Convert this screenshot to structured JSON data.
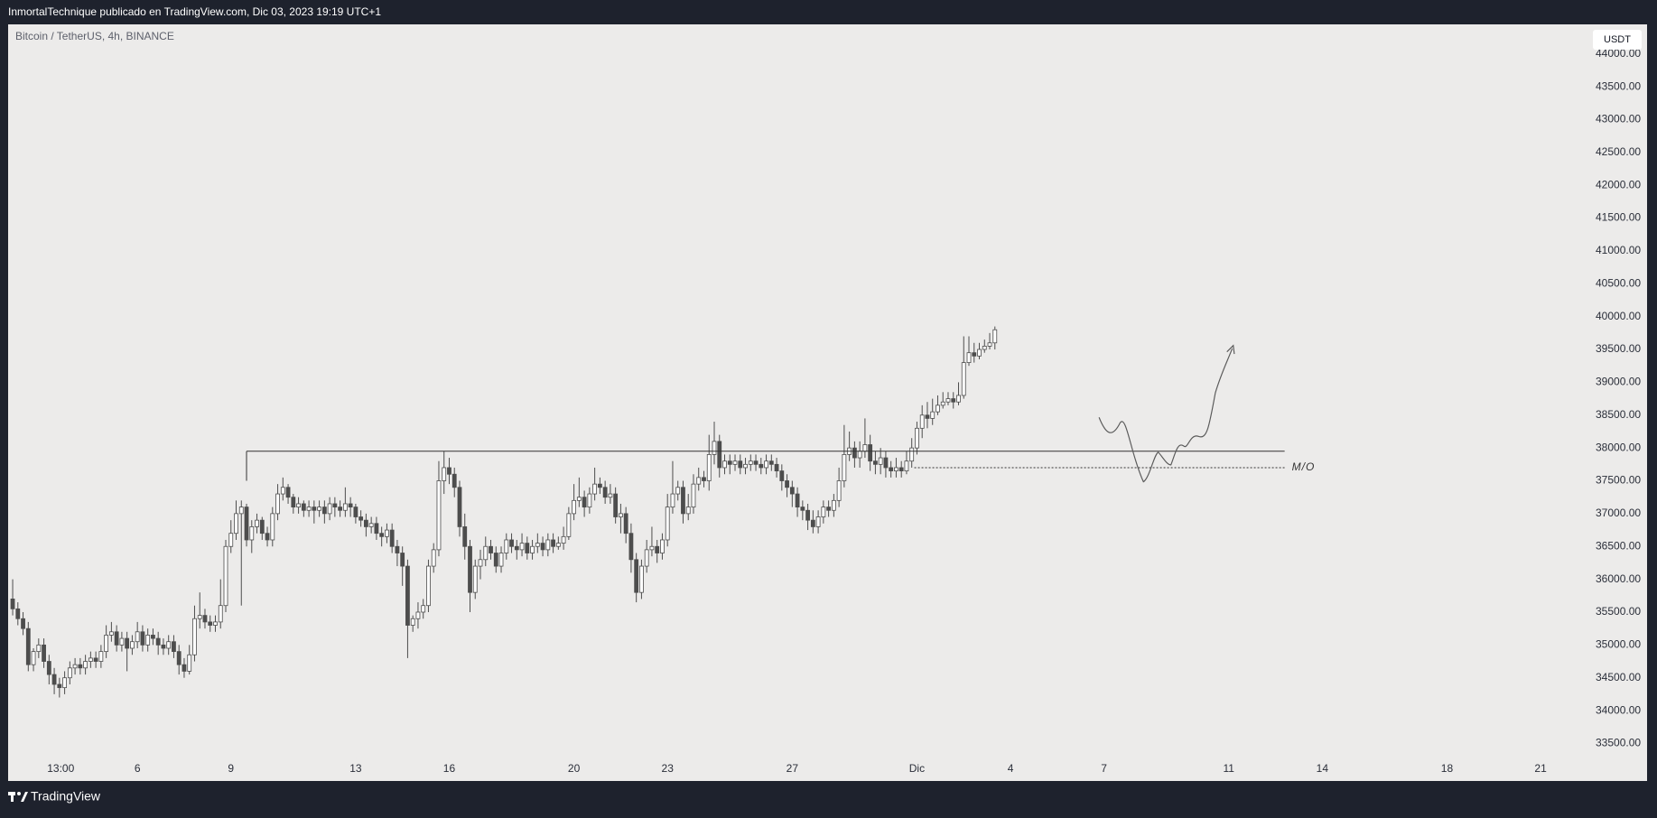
{
  "chart_data": {
    "type": "candlestick",
    "publisher_line": "InmortalTechnique publicado en TradingView.com, Dic 03, 2023 19:19 UTC+1",
    "title": "Bitcoin / TetherUS, 4h, BINANCE",
    "currency": "USDT",
    "brand": "TradingView",
    "up_color": "#ffffff",
    "down_color": "#4d4d4d",
    "wick_color": "#4d4d4d",
    "x": [
      24,
      28,
      32,
      36,
      40,
      44,
      48,
      52,
      56,
      60,
      64,
      68,
      72,
      76,
      80,
      84,
      88,
      92,
      96,
      100,
      104,
      108,
      112,
      116,
      120,
      124,
      128,
      132,
      136,
      140,
      144,
      148,
      152,
      156,
      160,
      164,
      168,
      172,
      176,
      180,
      184,
      188,
      192,
      196,
      200,
      204,
      208,
      212,
      216,
      220,
      224,
      228,
      232,
      236,
      240,
      244,
      248,
      252,
      256,
      260,
      264,
      268,
      272,
      276,
      280,
      284,
      288,
      292,
      296,
      300,
      304,
      308,
      312,
      316,
      320,
      324,
      328,
      332,
      336,
      340,
      344,
      348,
      352,
      356,
      360,
      364,
      368,
      372,
      376,
      380,
      384,
      388,
      392,
      396,
      400,
      404,
      408,
      412,
      416,
      420,
      424,
      428,
      432,
      436,
      440,
      444,
      448,
      452,
      456,
      460,
      464,
      468,
      472,
      476,
      480,
      484,
      488,
      492,
      496,
      500,
      504,
      508,
      512,
      516,
      520,
      524,
      528,
      532,
      536,
      540,
      544,
      548,
      552,
      556,
      560,
      564,
      568,
      572,
      576,
      580,
      584,
      588,
      592,
      596,
      600,
      604,
      608,
      612,
      616,
      620,
      624,
      628,
      632,
      636,
      640,
      644,
      648,
      652,
      656,
      660,
      664,
      668,
      672,
      676,
      680,
      684,
      688,
      692,
      696,
      700,
      704,
      708,
      712,
      716,
      720,
      724,
      728,
      732,
      736,
      740,
      744,
      748,
      752,
      756,
      760,
      764,
      768,
      772,
      776,
      780
    ],
    "open": [
      35700,
      35550,
      35400,
      35250,
      34700,
      34900,
      35000,
      34750,
      34550,
      34400,
      34350,
      34500,
      34650,
      34700,
      34650,
      34750,
      34800,
      34750,
      34900,
      35150,
      35200,
      35000,
      35100,
      34950,
      35050,
      35200,
      35000,
      35150,
      35100,
      35000,
      34950,
      35050,
      34900,
      34700,
      34600,
      34850,
      35400,
      35450,
      35350,
      35300,
      35350,
      35600,
      36500,
      36700,
      37000,
      37100,
      36600,
      36800,
      36900,
      36700,
      36600,
      37000,
      37300,
      37400,
      37250,
      37100,
      37150,
      37050,
      37100,
      37050,
      37100,
      37000,
      37150,
      37100,
      37050,
      37150,
      37100,
      36950,
      36900,
      36800,
      36850,
      36700,
      36650,
      36750,
      36500,
      36400,
      36200,
      35300,
      35400,
      35500,
      35600,
      36200,
      36450,
      37500,
      37700,
      37600,
      37400,
      36800,
      36500,
      35800,
      36200,
      36300,
      36500,
      36400,
      36200,
      36400,
      36600,
      36500,
      36450,
      36550,
      36400,
      36500,
      36550,
      36450,
      36600,
      36500,
      36550,
      36650,
      37000,
      37200,
      37250,
      37100,
      37300,
      37450,
      37400,
      37250,
      37300,
      36950,
      37000,
      36700,
      36300,
      35800,
      36200,
      36450,
      36500,
      36400,
      36600,
      37100,
      37300,
      37400,
      37000,
      37100,
      37450,
      37550,
      37500,
      37900,
      38100,
      37700,
      37800,
      37750,
      37800,
      37700,
      37750,
      37800,
      37750,
      37700,
      37800,
      37750,
      37650,
      37500,
      37400,
      37300,
      37100,
      37050,
      36900,
      36800,
      36950,
      37100,
      37050,
      37200,
      37500,
      37900,
      38000,
      37850,
      37950,
      38050,
      37800,
      37750,
      37850,
      37700,
      37650,
      37700,
      37650,
      37800,
      38000,
      38300,
      38500,
      38450,
      38550,
      38650,
      38700,
      38750,
      38700,
      38800,
      39300,
      39450,
      39400,
      39500,
      39550,
      39600
    ],
    "high": [
      36000,
      35650,
      35500,
      35350,
      34950,
      35100,
      35100,
      34850,
      34650,
      34500,
      34600,
      34750,
      34800,
      34800,
      34850,
      34900,
      34900,
      35000,
      35300,
      35350,
      35300,
      35200,
      35200,
      35150,
      35350,
      35300,
      35250,
      35250,
      35200,
      35100,
      35150,
      35150,
      35000,
      34800,
      35000,
      35600,
      35800,
      35550,
      35450,
      35450,
      36000,
      36600,
      36900,
      37200,
      37200,
      37150,
      36900,
      37000,
      36950,
      36800,
      37100,
      37450,
      37550,
      37450,
      37300,
      37250,
      37200,
      37200,
      37200,
      37200,
      37200,
      37250,
      37250,
      37200,
      37400,
      37250,
      37150,
      37050,
      37000,
      36950,
      36950,
      36800,
      36850,
      36850,
      36600,
      36500,
      36300,
      35450,
      35650,
      35700,
      36300,
      36550,
      37800,
      37950,
      37850,
      37700,
      37500,
      37000,
      36600,
      36300,
      36450,
      36650,
      36600,
      36500,
      36500,
      36700,
      36700,
      36600,
      36700,
      36650,
      36600,
      36700,
      36650,
      36700,
      36700,
      36650,
      36800,
      37100,
      37450,
      37550,
      37350,
      37400,
      37700,
      37550,
      37500,
      37450,
      37400,
      37150,
      37100,
      36850,
      36400,
      36300,
      36600,
      36800,
      36600,
      36700,
      37300,
      37800,
      37500,
      37500,
      37300,
      37600,
      37700,
      37650,
      38200,
      38400,
      38200,
      37900,
      37900,
      37900,
      37900,
      37850,
      37900,
      37900,
      37850,
      37900,
      37900,
      37850,
      37750,
      37600,
      37500,
      37400,
      37200,
      37150,
      37050,
      37050,
      37200,
      37200,
      37300,
      37700,
      38350,
      38250,
      38100,
      38100,
      38450,
      38200,
      37950,
      38000,
      37950,
      37800,
      37850,
      37800,
      37950,
      38150,
      38400,
      38650,
      38700,
      38750,
      38800,
      38850,
      38850,
      38850,
      39000,
      39700,
      39700,
      39600,
      39600,
      39650,
      39750,
      39850
    ],
    "low": [
      35450,
      35300,
      35150,
      34600,
      34600,
      34800,
      34650,
      34400,
      34250,
      34200,
      34250,
      34400,
      34550,
      34550,
      34550,
      34650,
      34650,
      34650,
      34800,
      35050,
      34900,
      34900,
      34600,
      34850,
      34950,
      34900,
      34900,
      35000,
      34850,
      34850,
      34850,
      34800,
      34550,
      34500,
      34550,
      34750,
      35250,
      35250,
      35200,
      35200,
      35250,
      35500,
      36400,
      36600,
      35600,
      36500,
      36400,
      36700,
      36600,
      36500,
      36500,
      36900,
      37200,
      37150,
      37000,
      37000,
      36950,
      36950,
      36850,
      36950,
      36850,
      36900,
      36950,
      36950,
      36950,
      36950,
      36850,
      36800,
      36650,
      36700,
      36600,
      36500,
      36550,
      36400,
      36200,
      35900,
      34800,
      35200,
      35250,
      35400,
      35500,
      36100,
      36350,
      37300,
      37450,
      37250,
      36650,
      36300,
      35500,
      35700,
      36000,
      36200,
      36300,
      36100,
      36100,
      36300,
      36400,
      36300,
      36350,
      36300,
      36300,
      36400,
      36350,
      36350,
      36400,
      36450,
      36450,
      36600,
      36900,
      37100,
      36950,
      37000,
      37200,
      37300,
      37150,
      37150,
      36850,
      36700,
      36550,
      36100,
      35650,
      35700,
      36100,
      36350,
      36250,
      36300,
      36500,
      37000,
      37200,
      36850,
      36900,
      37000,
      37350,
      37400,
      37350,
      37750,
      37550,
      37600,
      37600,
      37650,
      37600,
      37600,
      37650,
      37650,
      37600,
      37600,
      37650,
      37550,
      37350,
      37250,
      37100,
      36950,
      36900,
      36750,
      36700,
      36700,
      36850,
      36950,
      36950,
      37100,
      37400,
      37800,
      37700,
      37700,
      37850,
      37650,
      37600,
      37600,
      37550,
      37550,
      37550,
      37550,
      37600,
      37700,
      37900,
      38150,
      38300,
      38350,
      38500,
      38600,
      38650,
      38600,
      38650,
      38750,
      39250,
      39300,
      39350,
      39450,
      39500,
      39500
    ],
    "close": [
      35550,
      35400,
      35250,
      34700,
      34900,
      35000,
      34750,
      34550,
      34400,
      34350,
      34500,
      34650,
      34700,
      34650,
      34750,
      34800,
      34750,
      34900,
      35150,
      35200,
      35000,
      35100,
      34950,
      35050,
      35200,
      35000,
      35150,
      35100,
      35000,
      34950,
      35050,
      34900,
      34700,
      34600,
      34850,
      35400,
      35450,
      35350,
      35300,
      35350,
      35600,
      36500,
      36700,
      37000,
      37100,
      36600,
      36800,
      36900,
      36700,
      36600,
      37000,
      37300,
      37400,
      37250,
      37100,
      37150,
      37050,
      37100,
      37050,
      37100,
      37000,
      37150,
      37100,
      37050,
      37150,
      37100,
      36950,
      36900,
      36800,
      36850,
      36700,
      36650,
      36750,
      36500,
      36400,
      36200,
      35300,
      35400,
      35500,
      35600,
      36200,
      36450,
      37500,
      37700,
      37600,
      37400,
      36800,
      36500,
      35800,
      36200,
      36300,
      36500,
      36400,
      36200,
      36400,
      36600,
      36500,
      36450,
      36550,
      36400,
      36500,
      36550,
      36450,
      36600,
      36500,
      36550,
      36650,
      37000,
      37200,
      37250,
      37100,
      37300,
      37450,
      37400,
      37250,
      37300,
      36950,
      37000,
      36700,
      36300,
      35800,
      36200,
      36450,
      36500,
      36400,
      36600,
      37100,
      37300,
      37400,
      37000,
      37100,
      37450,
      37550,
      37500,
      37900,
      38100,
      37700,
      37800,
      37750,
      37800,
      37700,
      37750,
      37800,
      37750,
      37700,
      37800,
      37750,
      37650,
      37500,
      37400,
      37300,
      37100,
      37050,
      36900,
      36800,
      36950,
      37100,
      37050,
      37200,
      37500,
      37900,
      38000,
      37850,
      37950,
      38050,
      37800,
      37750,
      37850,
      37700,
      37650,
      37700,
      37650,
      37800,
      38000,
      38300,
      38500,
      38450,
      38550,
      38650,
      38700,
      38750,
      38700,
      38800,
      39300,
      39450,
      39400,
      39500,
      39550,
      39600,
      39800
    ],
    "annotations": [
      {
        "y": 37950,
        "x": [
          204,
          1003
        ]
      },
      {
        "label": "M/O",
        "y": 37700,
        "x": [
          718,
          1003
        ]
      }
    ],
    "xlim": [
      20.5,
      1234
    ],
    "ylim": [
      33300,
      44450
    ],
    "xticks": [
      {
        "value": 61,
        "label": "13:00"
      },
      {
        "value": 120,
        "label": "6"
      },
      {
        "value": 192,
        "label": "9"
      },
      {
        "value": 288,
        "label": "13"
      },
      {
        "value": 360,
        "label": "16"
      },
      {
        "value": 456,
        "label": "20"
      },
      {
        "value": 528,
        "label": "23"
      },
      {
        "value": 624,
        "label": "27"
      },
      {
        "value": 720,
        "label": "Dic"
      },
      {
        "value": 792,
        "label": "4"
      },
      {
        "value": 864,
        "label": "7"
      },
      {
        "value": 960,
        "label": "11"
      },
      {
        "value": 1032,
        "label": "14"
      },
      {
        "value": 1128,
        "label": "18"
      },
      {
        "value": 1200,
        "label": "21"
      }
    ],
    "yticks": [
      {
        "value": 33500,
        "label": "33500.00"
      },
      {
        "value": 34000,
        "label": "34000.00"
      },
      {
        "value": 34500,
        "label": "34500.00"
      },
      {
        "value": 35000,
        "label": "35000.00"
      },
      {
        "value": 35500,
        "label": "35500.00"
      },
      {
        "value": 36000,
        "label": "36000.00"
      },
      {
        "value": 36500,
        "label": "36500.00"
      },
      {
        "value": 37000,
        "label": "37000.00"
      },
      {
        "value": 37500,
        "label": "37500.00"
      },
      {
        "value": 38000,
        "label": "38000.00"
      },
      {
        "value": 38500,
        "label": "38500.00"
      },
      {
        "value": 39000,
        "label": "39000.00"
      },
      {
        "value": 39500,
        "label": "39500.00"
      },
      {
        "value": 40000,
        "label": "40000.00"
      },
      {
        "value": 40500,
        "label": "40500.00"
      },
      {
        "value": 41000,
        "label": "41000.00"
      },
      {
        "value": 41500,
        "label": "41500.00"
      },
      {
        "value": 42000,
        "label": "42000.00"
      },
      {
        "value": 42500,
        "label": "42500.00"
      },
      {
        "value": 43000,
        "label": "43000.00"
      },
      {
        "value": 43500,
        "label": "43500.00"
      },
      {
        "value": 44000,
        "label": "44000.00"
      }
    ],
    "grid": false
  }
}
